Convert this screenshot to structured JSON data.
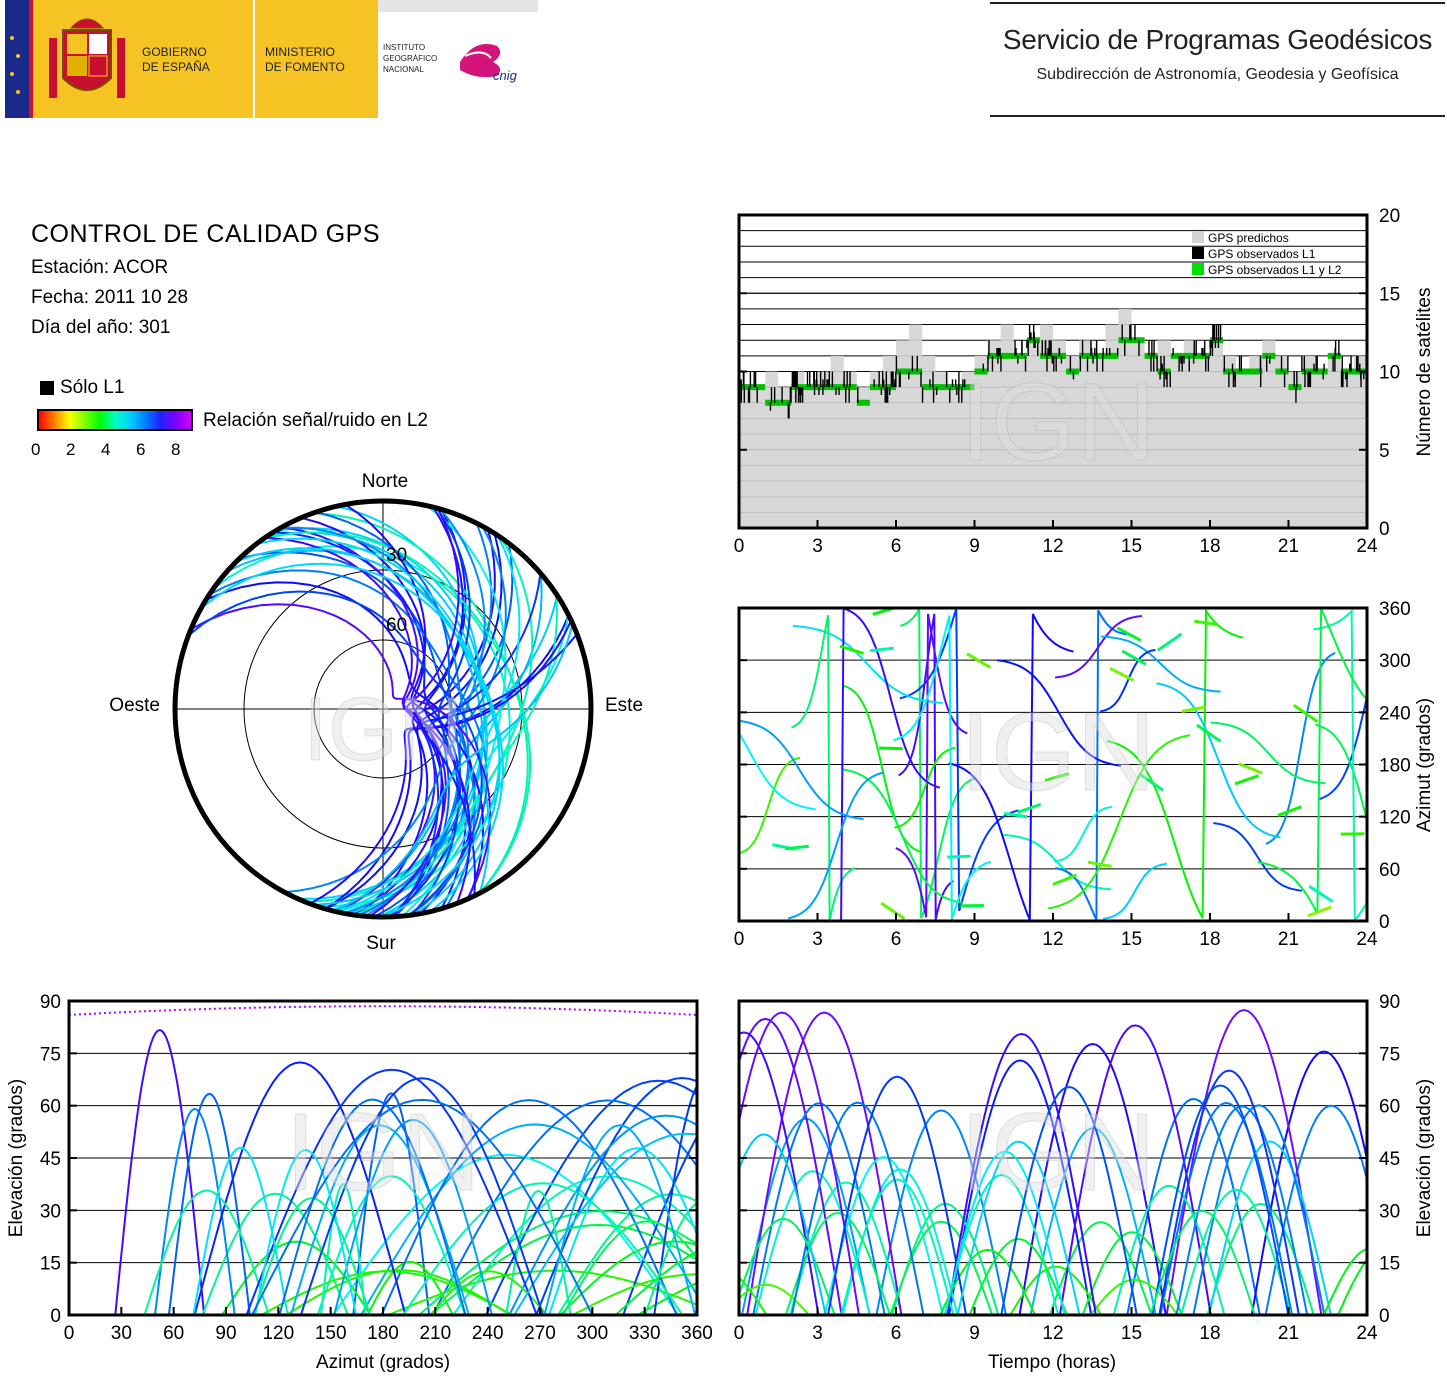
{
  "header": {
    "gov_line1": "GOBIERNO",
    "gov_line2": "DE ESPAÑA",
    "min_line1": "MINISTERIO",
    "min_line2": "DE FOMENTO",
    "ign_line1": "INSTITUTO",
    "ign_line2": "GEOGRÁFICO",
    "ign_line3": "NACIONAL",
    "cnig_logo_text": "cnig",
    "service_title": "Servicio de Programas Geodésicos",
    "service_subtitle": "Subdirección de Astronomía, Geodesia y Geofísica"
  },
  "info": {
    "title": "CONTROL DE CALIDAD GPS",
    "station": "Estación: ACOR",
    "date": "Fecha: 2011 10 28",
    "doy": "Día del año: 301"
  },
  "legend": {
    "l1_only": "Sólo L1",
    "snr_label": "Relación señal/ruido en L2",
    "snr_ticks": [
      "0",
      "2",
      "4",
      "6",
      "8"
    ],
    "colors": {
      "l1_only": "#000000",
      "predicted": "#d3d3d3",
      "observed_l1": "#000000",
      "observed_l1l2": "#00e000"
    }
  },
  "watermark": "IGN",
  "chart_data": [
    {
      "id": "satellites",
      "type": "area",
      "ylabel": "Número de satélites",
      "xlim": [
        0,
        24
      ],
      "ylim": [
        0,
        20
      ],
      "x_ticks": [
        "0",
        "3",
        "6",
        "9",
        "12",
        "15",
        "18",
        "21",
        "24"
      ],
      "y_ticks": [
        "0",
        "5",
        "10",
        "15",
        "20"
      ],
      "legend": [
        "GPS predichos",
        "GPS observados L1",
        "GPS observados L1 y L2"
      ],
      "legend_position": "top-right",
      "grid": true,
      "series": [
        {
          "name": "GPS predichos",
          "x": [
            0,
            1,
            1.5,
            2,
            2.5,
            3,
            3.5,
            4,
            4.5,
            5,
            5.5,
            6,
            6.5,
            7,
            7.5,
            8,
            8.5,
            9,
            9.5,
            10,
            10.5,
            11,
            11.5,
            12,
            12.5,
            13,
            13.5,
            14,
            14.5,
            15,
            15.5,
            16,
            16.5,
            17,
            17.5,
            18,
            18.5,
            19,
            19.5,
            20,
            20.5,
            21,
            21.5,
            22,
            22.5,
            23,
            23.5,
            24
          ],
          "values": [
            9,
            10,
            9,
            10,
            9,
            10,
            11,
            10,
            9,
            10,
            11,
            12,
            13,
            11,
            10,
            9,
            10,
            11,
            12,
            13,
            11,
            12,
            13,
            12,
            11,
            12,
            11,
            13,
            14,
            12,
            11,
            12,
            11,
            12,
            11,
            12,
            11,
            10,
            11,
            12,
            11,
            10,
            11,
            10,
            11,
            10,
            11,
            10
          ]
        },
        {
          "name": "GPS observados L1",
          "x": [
            0,
            1,
            1.5,
            2,
            2.5,
            3,
            3.5,
            4,
            4.5,
            5,
            5.5,
            6,
            6.5,
            7,
            7.5,
            8,
            8.5,
            9,
            9.5,
            10,
            10.5,
            11,
            11.5,
            12,
            12.5,
            13,
            13.5,
            14,
            14.5,
            15,
            15.5,
            16,
            16.5,
            17,
            17.5,
            18,
            18.5,
            19,
            19.5,
            20,
            20.5,
            21,
            21.5,
            22,
            22.5,
            23,
            23.5,
            24
          ],
          "values": [
            9,
            8,
            8,
            9,
            9,
            9,
            9,
            9,
            8,
            9,
            9,
            10,
            10,
            9,
            9,
            9,
            9,
            10,
            11,
            11,
            11,
            12,
            11,
            11,
            10,
            11,
            11,
            11,
            12,
            12,
            11,
            10,
            11,
            11,
            11,
            12,
            10,
            10,
            10,
            11,
            10,
            9,
            10,
            10,
            11,
            10,
            10,
            10
          ]
        }
      ]
    },
    {
      "id": "azimuth_time",
      "type": "scatter",
      "ylabel": "Azimut (grados)",
      "xlim": [
        0,
        24
      ],
      "ylim": [
        0,
        360
      ],
      "x_ticks": [
        "0",
        "3",
        "6",
        "9",
        "12",
        "15",
        "18",
        "21",
        "24"
      ],
      "y_ticks": [
        "0",
        "60",
        "120",
        "180",
        "240",
        "300",
        "360"
      ],
      "grid": true
    },
    {
      "id": "skyplot",
      "type": "scatter",
      "directions": {
        "north": "Norte",
        "south": "Sur",
        "east": "Este",
        "west": "Oeste"
      },
      "ring_labels": [
        "30",
        "60"
      ]
    },
    {
      "id": "elev_azimuth",
      "type": "scatter",
      "xlabel": "Azimut (grados)",
      "ylabel": "Elevación (grados)",
      "xlim": [
        0,
        360
      ],
      "ylim": [
        0,
        90
      ],
      "x_ticks": [
        "0",
        "30",
        "60",
        "90",
        "120",
        "150",
        "180",
        "210",
        "240",
        "270",
        "300",
        "330",
        "360"
      ],
      "y_ticks": [
        "0",
        "15",
        "30",
        "45",
        "60",
        "75",
        "90"
      ],
      "grid": true
    },
    {
      "id": "elev_time",
      "type": "scatter",
      "xlabel": "Tiempo (horas)",
      "ylabel": "Elevación (grados)",
      "xlim": [
        0,
        24
      ],
      "ylim": [
        0,
        90
      ],
      "x_ticks": [
        "0",
        "3",
        "6",
        "9",
        "12",
        "15",
        "18",
        "21",
        "24"
      ],
      "y_ticks": [
        "0",
        "15",
        "30",
        "45",
        "60",
        "75",
        "90"
      ],
      "grid": true
    }
  ]
}
